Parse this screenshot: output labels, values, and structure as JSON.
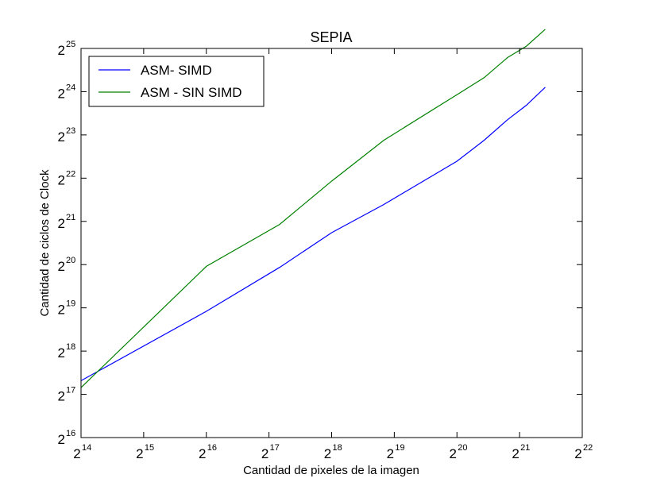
{
  "chart_data": {
    "type": "line",
    "title": "SEPIA",
    "xlabel": "Cantidad de pixeles de la imagen",
    "ylabel": "Cantidad de ciclos de Clock",
    "x_scale": "log2",
    "y_scale": "log2",
    "xlim_exp": [
      14,
      22
    ],
    "ylim_exp": [
      16,
      25
    ],
    "x_ticks": [
      {
        "base": "2",
        "exp": "14"
      },
      {
        "base": "2",
        "exp": "15"
      },
      {
        "base": "2",
        "exp": "16"
      },
      {
        "base": "2",
        "exp": "17"
      },
      {
        "base": "2",
        "exp": "18"
      },
      {
        "base": "2",
        "exp": "19"
      },
      {
        "base": "2",
        "exp": "20"
      },
      {
        "base": "2",
        "exp": "21"
      },
      {
        "base": "2",
        "exp": "22"
      }
    ],
    "y_ticks": [
      {
        "base": "2",
        "exp": "16"
      },
      {
        "base": "2",
        "exp": "17"
      },
      {
        "base": "2",
        "exp": "18"
      },
      {
        "base": "2",
        "exp": "19"
      },
      {
        "base": "2",
        "exp": "20"
      },
      {
        "base": "2",
        "exp": "21"
      },
      {
        "base": "2",
        "exp": "22"
      },
      {
        "base": "2",
        "exp": "23"
      },
      {
        "base": "2",
        "exp": "24"
      },
      {
        "base": "2",
        "exp": "25"
      }
    ],
    "grid": false,
    "legend_position": "top-left",
    "series": [
      {
        "name": "ASM- SIMD",
        "color": "#0000ff",
        "x": [
          16384,
          65536,
          147456,
          262144,
          466944,
          1048576,
          1417216,
          1835008,
          2260992,
          2785280
        ],
        "y": [
          163000,
          496000,
          1003000,
          1750000,
          2750000,
          5500000,
          7700000,
          10700000,
          13500000,
          18000000
        ]
      },
      {
        "name": "ASM - SIN SIMD",
        "color": "#008000",
        "x": [
          16384,
          65536,
          147456,
          262144,
          466944,
          1048576,
          1417216,
          1835008,
          2260992,
          2785280
        ],
        "y": [
          146000,
          1020000,
          1998000,
          4000000,
          7700000,
          16000000,
          21000000,
          29000000,
          34800000,
          45600000
        ]
      }
    ]
  }
}
